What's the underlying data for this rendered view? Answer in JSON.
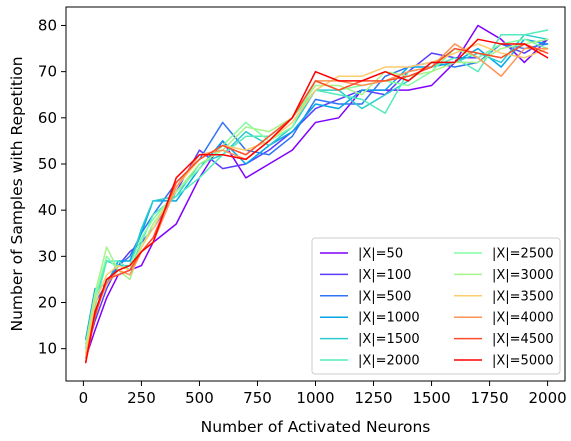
{
  "chart_data": {
    "type": "line",
    "title": "",
    "xlabel": "Number of Activated Neurons",
    "ylabel": "Number of Samples with Repetition",
    "xlim": [
      -75,
      2075
    ],
    "ylim": [
      3,
      84
    ],
    "xticks": [
      0,
      250,
      500,
      750,
      1000,
      1250,
      1500,
      1750,
      2000
    ],
    "yticks": [
      10,
      20,
      30,
      40,
      50,
      60,
      70,
      80
    ],
    "grid": false,
    "legend_position": "lower-right",
    "legend_columns": 2,
    "x": [
      10,
      50,
      100,
      150,
      200,
      250,
      300,
      400,
      500,
      600,
      700,
      800,
      900,
      1000,
      1100,
      1200,
      1300,
      1400,
      1500,
      1600,
      1700,
      1800,
      1900,
      2000
    ],
    "series": [
      {
        "name": "|X|=50",
        "color": "#8000ff",
        "values": [
          8,
          14,
          21,
          26,
          27,
          28,
          33,
          37,
          47,
          55,
          47,
          50,
          53,
          59,
          60,
          66,
          66,
          66,
          67,
          72,
          80,
          77,
          72,
          77
        ]
      },
      {
        "name": "|X|=100",
        "color": "#5a3dfd",
        "values": [
          9,
          16,
          23,
          28,
          31,
          33,
          36,
          44,
          53,
          49,
          50,
          53,
          57,
          62,
          64,
          66,
          65,
          70,
          74,
          73,
          73,
          76,
          74,
          77
        ]
      },
      {
        "name": "|X|=500",
        "color": "#2f74f4",
        "values": [
          10,
          20,
          24,
          28,
          30,
          35,
          39,
          46,
          51,
          59,
          53,
          52,
          56,
          64,
          63,
          63,
          69,
          71,
          72,
          71,
          72,
          76,
          75,
          76
        ]
      },
      {
        "name": "|X|=1000",
        "color": "#04a6e5",
        "values": [
          12,
          23,
          24,
          29,
          29,
          35,
          42,
          42,
          49,
          55,
          50,
          54,
          57,
          63,
          62,
          66,
          66,
          71,
          71,
          72,
          75,
          71,
          77,
          76
        ]
      },
      {
        "name": "|X|=1500",
        "color": "#2acccf",
        "values": [
          11,
          21,
          29,
          28,
          28,
          36,
          42,
          43,
          50,
          52,
          57,
          54,
          58,
          66,
          66,
          62,
          65,
          68,
          72,
          72,
          74,
          72,
          78,
          77
        ]
      },
      {
        "name": "|X|=2000",
        "color": "#54ebbc",
        "values": [
          10,
          19,
          29,
          29,
          27,
          33,
          39,
          43,
          47,
          52,
          56,
          56,
          60,
          66,
          65,
          64,
          61,
          70,
          71,
          73,
          70,
          78,
          78,
          79
        ]
      },
      {
        "name": "|X|=2500",
        "color": "#80fda2",
        "values": [
          10,
          21,
          30,
          27,
          28,
          34,
          38,
          44,
          49,
          54,
          59,
          55,
          58,
          68,
          66,
          67,
          68,
          67,
          70,
          75,
          73,
          76,
          77,
          75
        ]
      },
      {
        "name": "|X|=3000",
        "color": "#a6f38a",
        "values": [
          11,
          22,
          32,
          27,
          25,
          32,
          37,
          44,
          50,
          53,
          58,
          57,
          60,
          67,
          67,
          65,
          70,
          69,
          70,
          72,
          72,
          75,
          76,
          77
        ]
      },
      {
        "name": "|X|=3500",
        "color": "#fdcc6c",
        "values": [
          9,
          20,
          26,
          28,
          27,
          32,
          36,
          45,
          51,
          54,
          53,
          55,
          59,
          66,
          69,
          69,
          71,
          71,
          72,
          74,
          76,
          74,
          73,
          75
        ]
      },
      {
        "name": "|X|=4000",
        "color": "#ff9355",
        "values": [
          8,
          18,
          24,
          27,
          26,
          31,
          33,
          45,
          52,
          53,
          51,
          55,
          60,
          68,
          68,
          67,
          68,
          70,
          71,
          76,
          73,
          69,
          75,
          75
        ]
      },
      {
        "name": "|X|=4500",
        "color": "#ff4c28",
        "values": [
          7,
          17,
          25,
          26,
          27,
          31,
          34,
          46,
          51,
          54,
          52,
          56,
          60,
          68,
          66,
          68,
          68,
          69,
          71,
          75,
          74,
          73,
          76,
          74
        ]
      },
      {
        "name": "|X|=5000",
        "color": "#ff0000",
        "values": [
          7,
          18,
          25,
          27,
          28,
          31,
          33,
          47,
          52,
          52,
          51,
          55,
          60,
          70,
          68,
          68,
          70,
          68,
          72,
          72,
          77,
          76,
          76,
          73
        ]
      }
    ]
  }
}
